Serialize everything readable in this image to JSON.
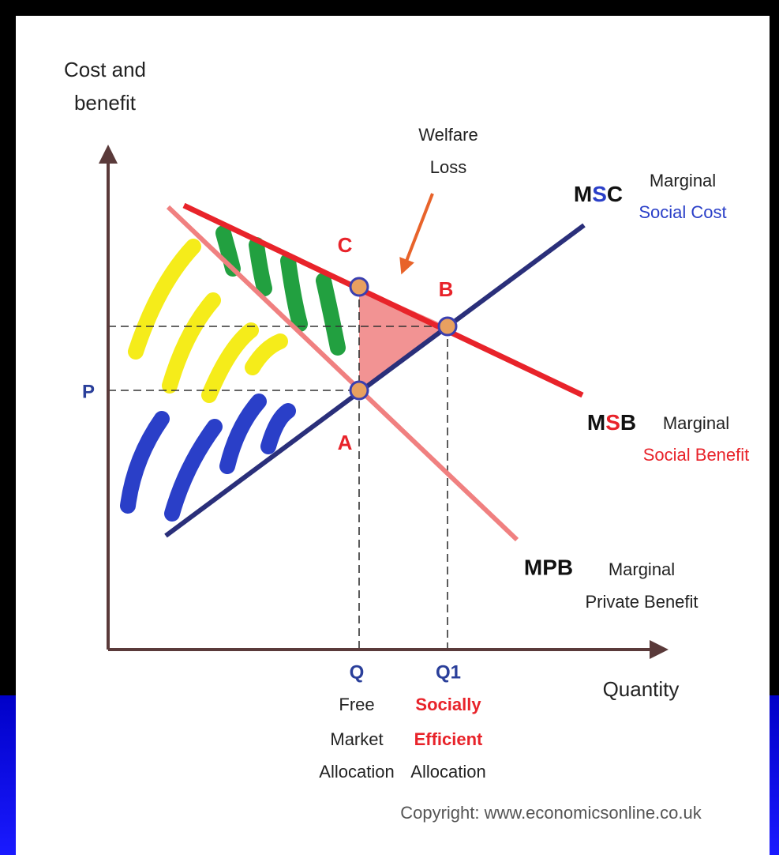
{
  "diagram": {
    "y_axis_label": [
      "Cost and",
      "benefit"
    ],
    "x_axis_label": "Quantity",
    "welfare_loss": [
      "Welfare",
      "Loss"
    ],
    "curves": {
      "msc": {
        "abbr": [
          "M",
          "S",
          "C"
        ],
        "name": [
          "Marginal",
          "Social Cost"
        ]
      },
      "msb": {
        "abbr": [
          "M",
          "S",
          "B"
        ],
        "name": [
          "Marginal",
          "Social Benefit"
        ]
      },
      "mpb": {
        "abbr": "MPB",
        "name": [
          "Marginal",
          "Private Benefit"
        ]
      }
    },
    "points": {
      "c": "C",
      "b": "B",
      "a": "A"
    },
    "price": "P",
    "quantities": {
      "q": {
        "label": "Q",
        "caption": [
          "Free",
          "Market",
          "Allocation"
        ]
      },
      "q1": {
        "label": "Q1",
        "caption": [
          "Socially",
          "Efficient",
          "Allocation"
        ]
      }
    },
    "copyright": "Copyright: www.economicsonline.co.uk"
  }
}
